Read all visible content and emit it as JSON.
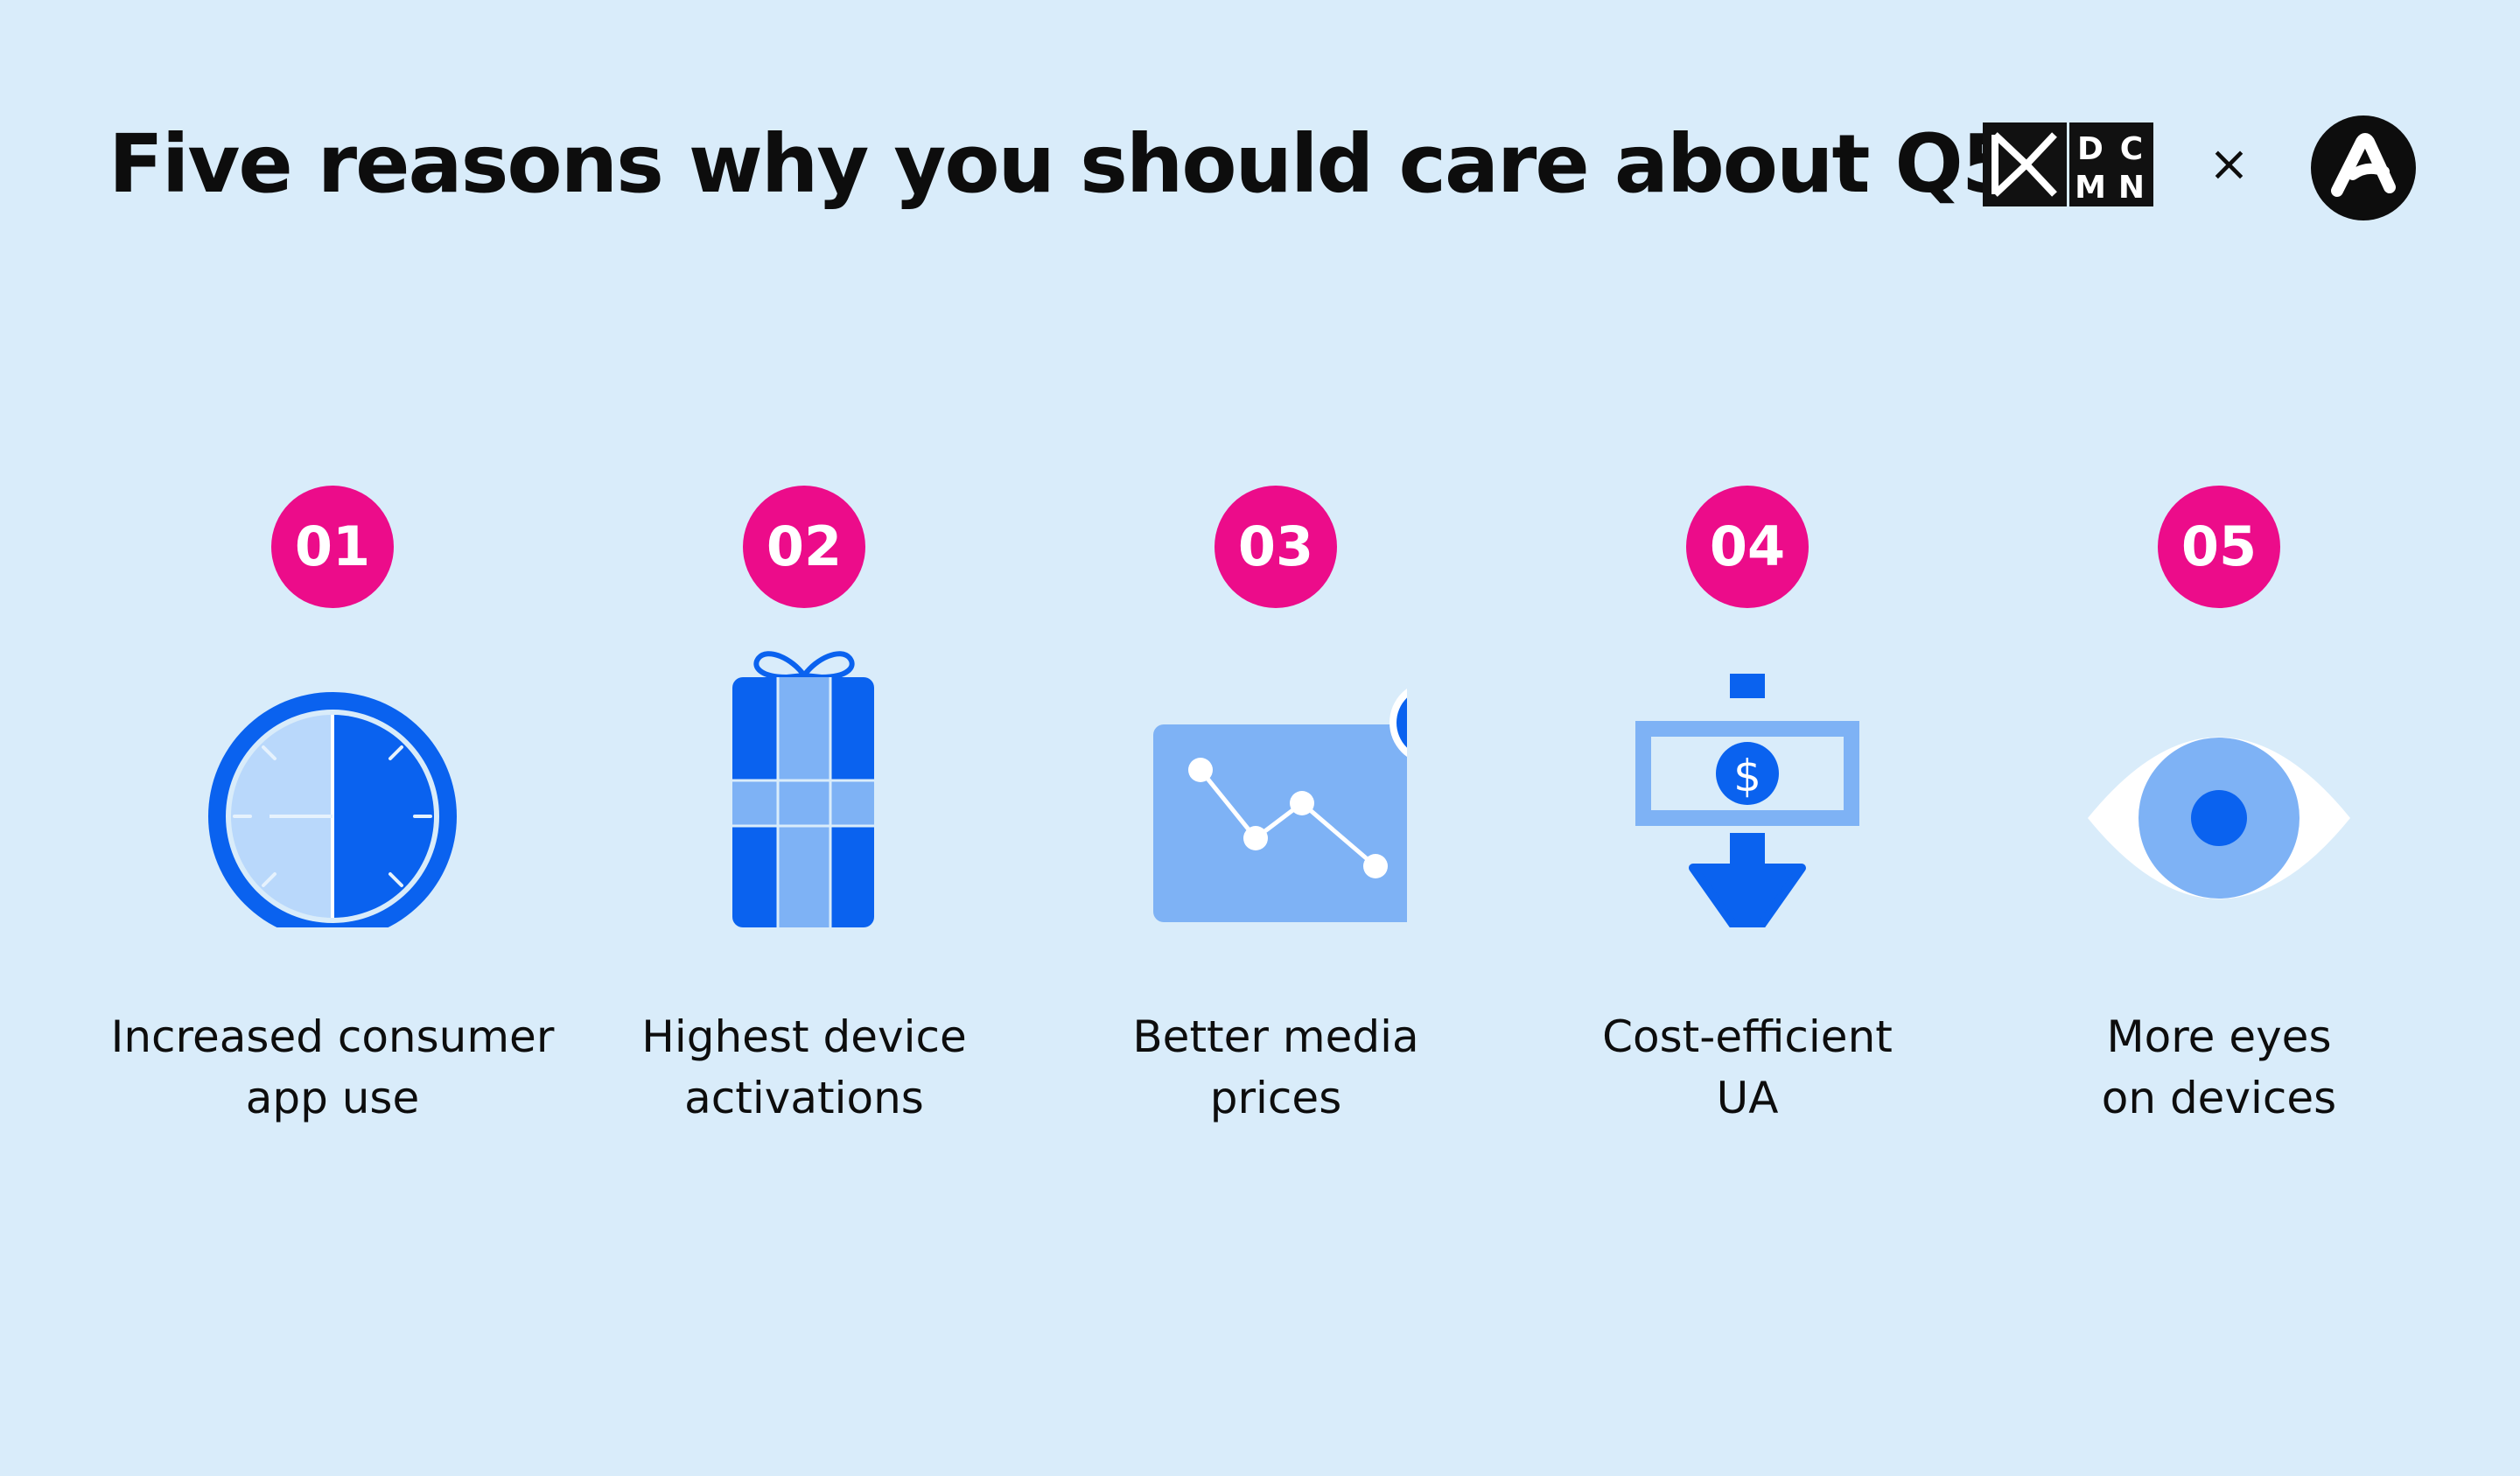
{
  "header": {
    "title": "Five reasons why you should care about Q5",
    "logo_left_text": [
      "D",
      "C",
      "M",
      "N"
    ],
    "separator": "×",
    "logo_right_icon": "partner-a-logo-icon"
  },
  "items": [
    {
      "number": "01",
      "icon": "clock-icon",
      "lines": [
        "Increased consumer",
        "app use"
      ]
    },
    {
      "number": "02",
      "icon": "gift-box-icon",
      "lines": [
        "Highest device",
        "activations"
      ]
    },
    {
      "number": "03",
      "icon": "price-chart-icon",
      "lines": [
        "Better media",
        "prices"
      ]
    },
    {
      "number": "04",
      "icon": "money-down-arrow-icon",
      "lines": [
        "Cost-efficient",
        "UA"
      ]
    },
    {
      "number": "05",
      "icon": "eye-icon",
      "lines": [
        "More eyes",
        "on devices"
      ]
    }
  ],
  "colors": {
    "background": "#d9ecfa",
    "badge": "#ec0c8a",
    "blue_dark": "#0a62ef",
    "blue_light": "#7eb2f5",
    "blue_pale": "#b9d8fb"
  }
}
